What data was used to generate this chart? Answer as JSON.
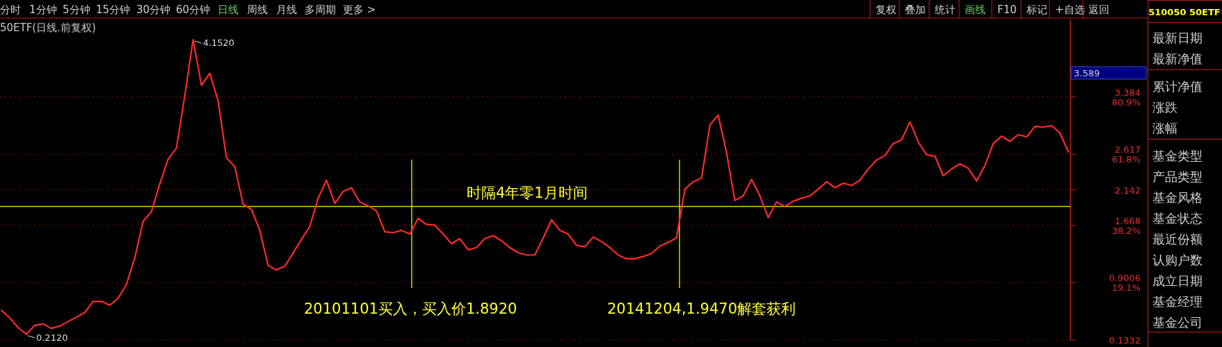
{
  "chart_data": {
    "type": "line",
    "title": "50ETF(日线.前复权)",
    "categories": [
      null,
      null,
      null,
      null,
      null,
      null,
      null,
      null,
      null,
      null,
      null,
      null,
      null,
      null,
      null,
      null,
      null,
      null,
      null,
      null,
      null,
      null,
      null,
      null,
      null,
      null,
      null,
      null,
      null,
      null,
      null,
      null,
      null,
      null,
      null,
      null,
      null,
      null,
      null,
      null,
      null,
      null,
      null,
      null,
      null,
      null,
      null,
      null,
      null,
      null,
      null,
      null,
      null,
      null,
      null,
      null,
      null,
      null,
      null,
      null,
      null,
      null,
      null,
      null,
      null,
      null,
      null,
      null,
      null,
      null,
      null,
      null,
      null,
      null,
      null,
      null,
      null,
      null,
      null,
      null,
      null,
      null,
      null,
      null,
      null,
      null,
      null,
      null,
      null,
      null,
      null,
      null,
      null,
      null,
      null,
      null,
      null,
      null,
      null,
      null,
      null,
      null,
      null,
      null,
      null,
      null,
      null,
      null,
      null,
      null,
      null,
      null,
      null,
      null,
      null,
      null,
      null,
      null,
      null,
      null,
      null,
      null,
      null,
      null,
      null,
      null,
      null,
      null,
      null
    ],
    "series": [
      {
        "color": "#ff2a2a",
        "values": [
          0.53,
          0.43,
          0.3,
          0.21,
          0.33,
          0.35,
          0.29,
          0.32,
          0.38,
          0.44,
          0.5,
          0.65,
          0.65,
          0.6,
          0.69,
          0.88,
          1.23,
          1.72,
          1.85,
          2.22,
          2.55,
          2.7,
          3.4,
          4.15,
          3.54,
          3.7,
          3.33,
          2.57,
          2.45,
          1.95,
          1.88,
          1.6,
          1.13,
          1.07,
          1.12,
          1.3,
          1.48,
          1.65,
          2.03,
          2.27,
          1.96,
          2.12,
          2.17,
          1.98,
          1.93,
          1.86,
          1.58,
          1.57,
          1.6,
          1.55,
          1.76,
          1.68,
          1.67,
          1.55,
          1.42,
          1.49,
          1.34,
          1.37,
          1.49,
          1.53,
          1.46,
          1.37,
          1.3,
          1.27,
          1.27,
          1.5,
          1.74,
          1.6,
          1.55,
          1.4,
          1.38,
          1.51,
          1.45,
          1.37,
          1.27,
          1.22,
          1.22,
          1.25,
          1.29,
          1.39,
          1.44,
          1.5,
          2.15,
          2.25,
          2.3,
          3.01,
          3.14,
          2.64,
          2.0,
          2.06,
          2.28,
          2.06,
          1.77,
          1.98,
          1.92,
          1.99,
          2.03,
          2.06,
          2.15,
          2.25,
          2.17,
          2.23,
          2.2,
          2.27,
          2.42,
          2.54,
          2.6,
          2.76,
          2.81,
          3.05,
          2.78,
          2.61,
          2.59,
          2.33,
          2.42,
          2.49,
          2.43,
          2.26,
          2.47,
          2.76,
          2.86,
          2.79,
          2.88,
          2.85,
          2.99,
          2.98,
          3.0,
          2.9,
          2.65
        ]
      }
    ],
    "ylim": [
      0.1332,
      4.42
    ],
    "yticks": [
      {
        "value": 3.384,
        "label": "3.384\n80.9%"
      },
      {
        "value": 2.617,
        "label": "2.617\n61.8%"
      },
      2.142,
      {
        "value": 1.668,
        "label": "1.668\n38.2%"
      },
      {
        "value": 0.9006,
        "label": "0.9006\n19.1%"
      },
      0.1332
    ],
    "grid": "y",
    "ref_lines": [
      {
        "axis": "y",
        "value": 1.92,
        "color": "#d8d800"
      }
    ],
    "annotations": [
      "时隔4年零1月时间",
      "20101101买入，买入价1.8920",
      "20141204,1.9470解套获利",
      "4.1520",
      "0.2120",
      "3.589",
      "分时",
      "1分钟",
      "5分钟",
      "15分钟",
      "30分钟",
      "60分钟",
      "日线",
      "周线",
      "月线",
      "多周期",
      "更多 >",
      "复权",
      "叠加",
      "统计",
      "画线",
      "F10",
      "标记",
      "+自选",
      "返回",
      "510050 50ETF",
      "最新日期",
      "最新净值",
      "累计净值",
      "涨跌",
      "涨幅",
      "基金类型",
      "产品类型",
      "基金风格",
      "基金状态",
      "最近份额",
      "认购户数",
      "成立日期",
      "基金经理",
      "基金公司"
    ]
  }
}
